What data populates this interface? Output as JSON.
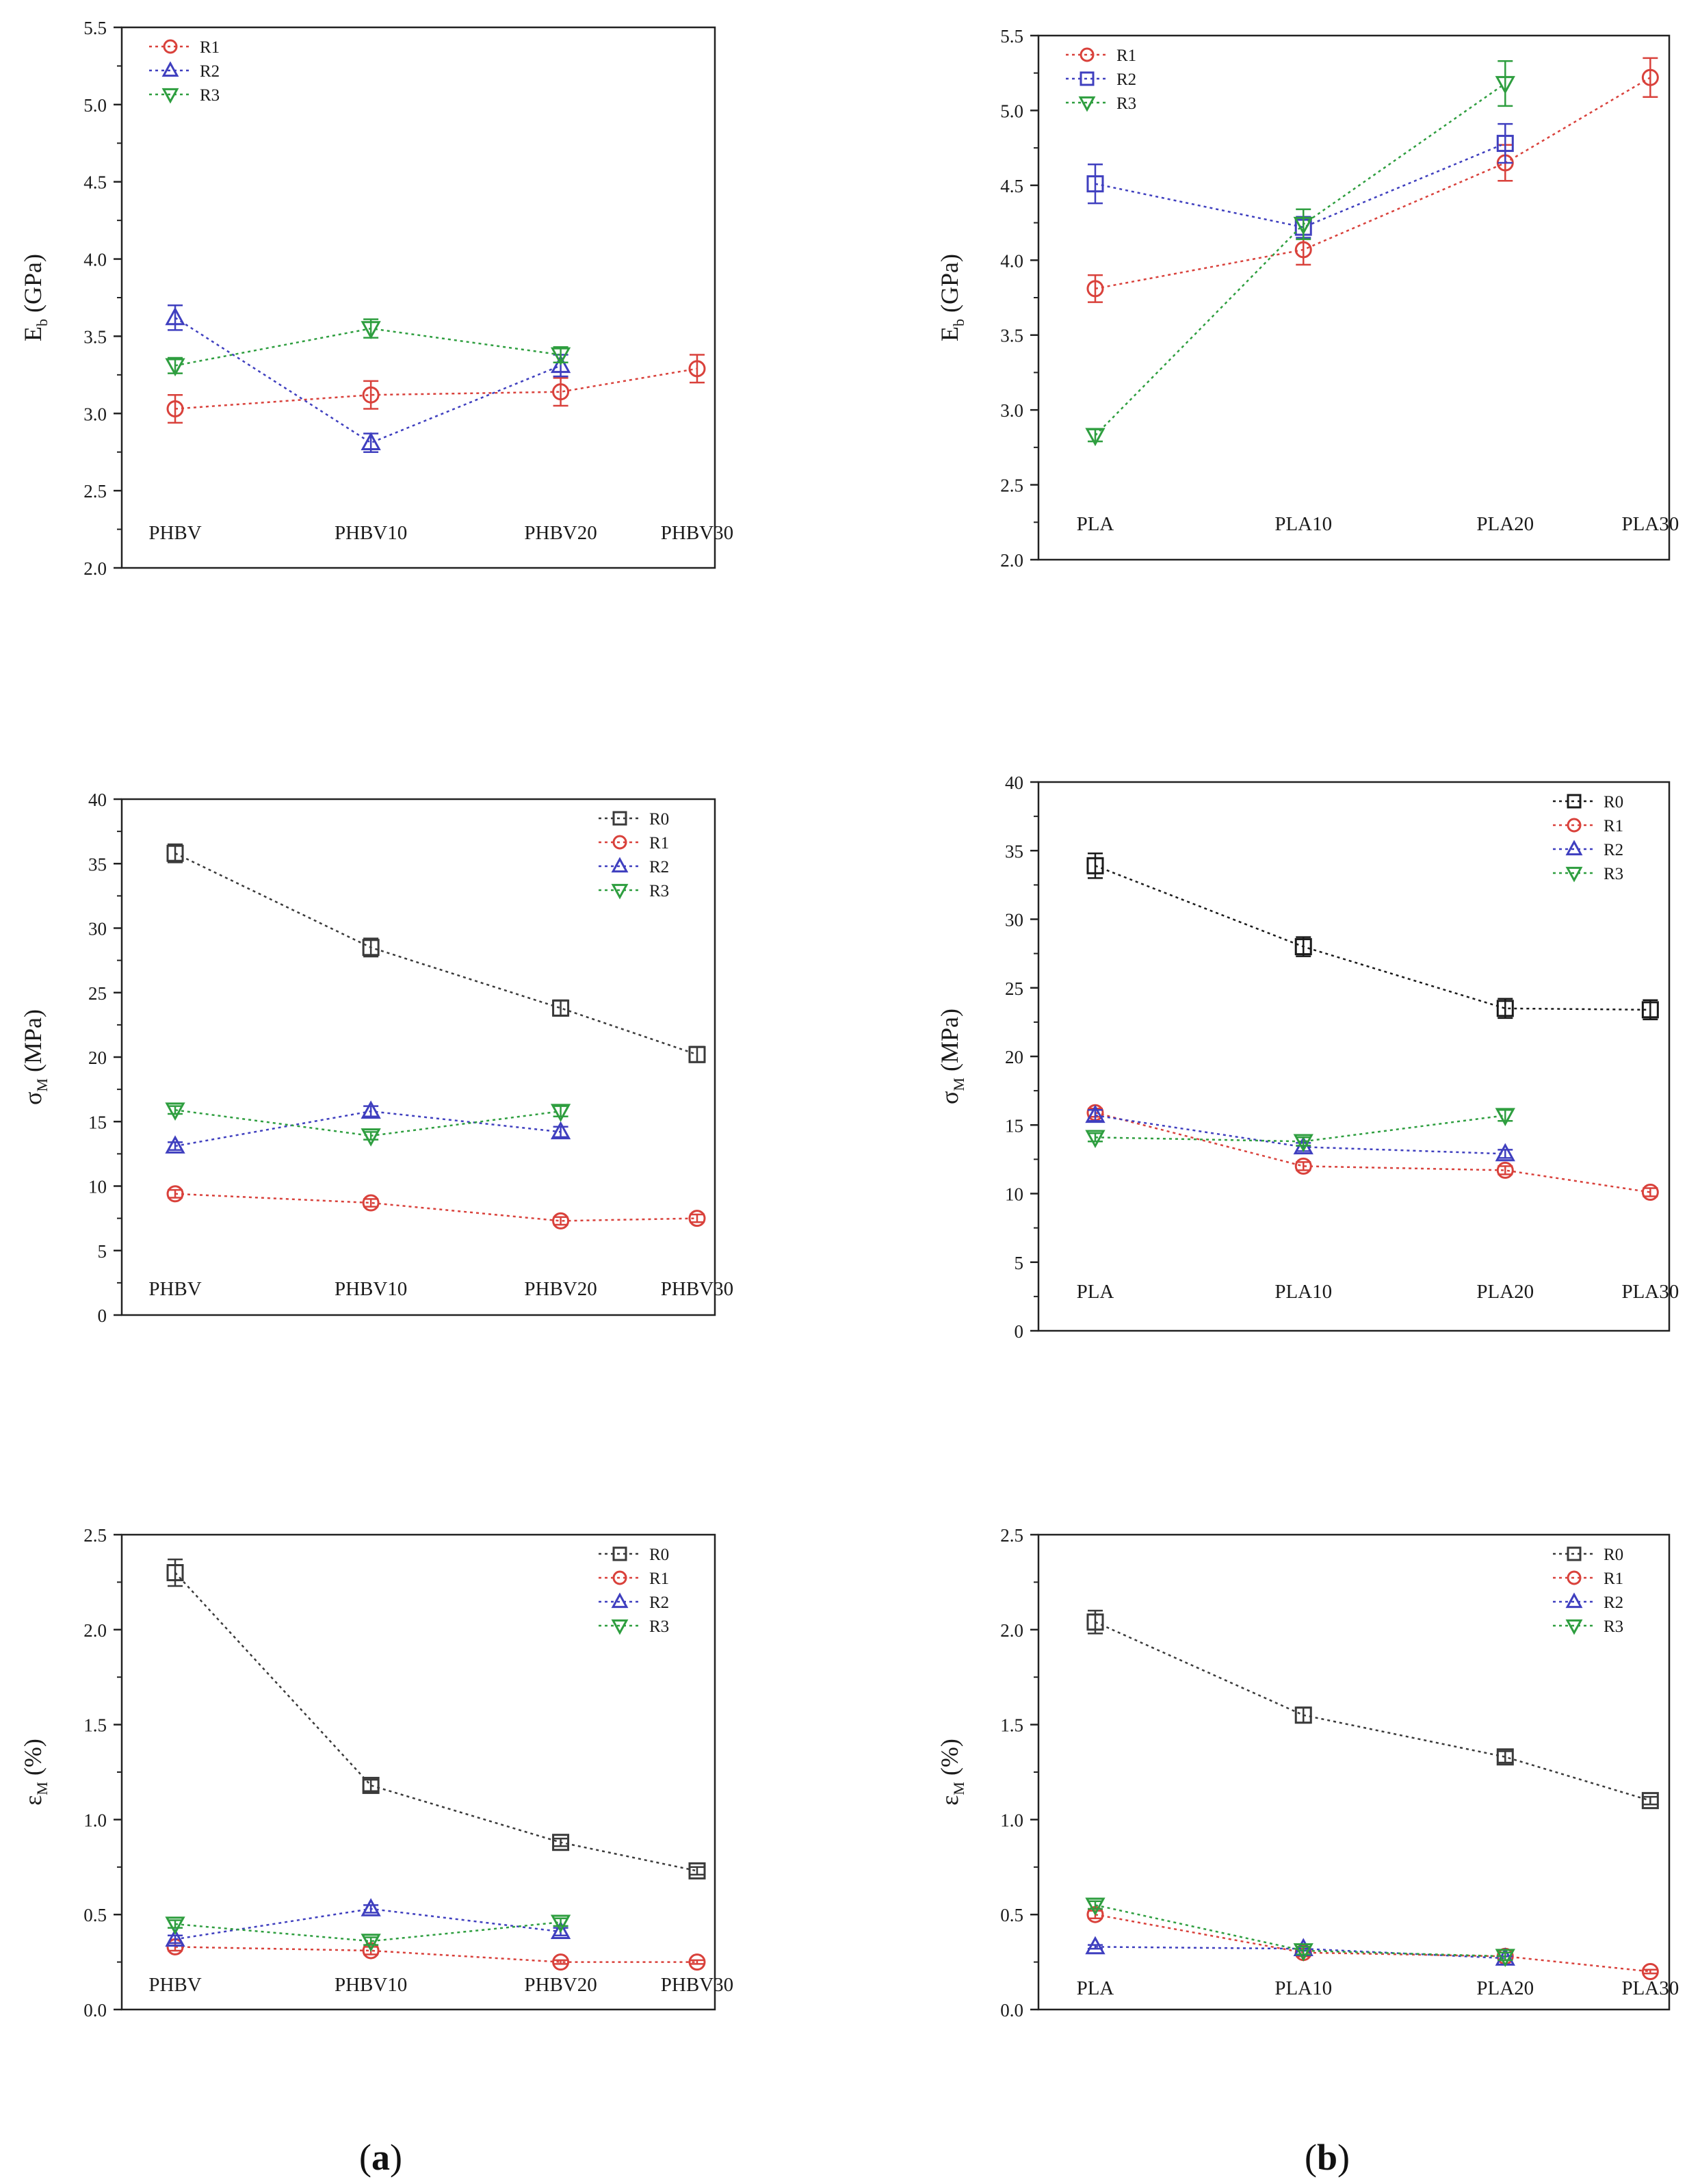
{
  "figure": {
    "caption_a": "a",
    "caption_b": "b"
  },
  "chart_data": [
    {
      "id": "a1",
      "type": "line",
      "ylabel_main": "E",
      "ylabel_sub": "b",
      "ylabel_tail": " (GPa)",
      "ylim": [
        2.0,
        5.5
      ],
      "yticks": [
        "2.0",
        "2.5",
        "3.0",
        "3.5",
        "4.0",
        "4.5",
        "5.0",
        "5.5"
      ],
      "categories": [
        "PHBV",
        "PHBV10",
        "PHBV20",
        "PHBV30"
      ],
      "legend_pos": "top-left",
      "series": [
        {
          "name": "R1",
          "marker": "circle",
          "color": "#d9413b",
          "values": [
            3.03,
            3.12,
            3.14,
            3.29
          ],
          "errors": [
            0.09,
            0.09,
            0.09,
            0.09
          ]
        },
        {
          "name": "R2",
          "marker": "triangle-up",
          "color": "#3f3fbf",
          "values": [
            3.62,
            2.81,
            3.31,
            null
          ],
          "errors": [
            0.08,
            0.06,
            0.07,
            null
          ]
        },
        {
          "name": "R3",
          "marker": "triangle-down",
          "color": "#2e9e3f",
          "values": [
            3.31,
            3.55,
            3.38,
            null
          ],
          "errors": [
            0.05,
            0.06,
            0.05,
            null
          ]
        }
      ]
    },
    {
      "id": "b1",
      "type": "line",
      "ylabel_main": "E",
      "ylabel_sub": "b",
      "ylabel_tail": " (GPa)",
      "ylim": [
        2.0,
        5.5
      ],
      "yticks": [
        "2.0",
        "2.5",
        "3.0",
        "3.5",
        "4.0",
        "4.5",
        "5.0",
        "5.5"
      ],
      "categories": [
        "PLA",
        "PLA10",
        "PLA20",
        "PLA30"
      ],
      "legend_pos": "top-left",
      "series": [
        {
          "name": "R1",
          "marker": "circle",
          "color": "#d9413b",
          "values": [
            3.81,
            4.07,
            4.65,
            5.22
          ],
          "errors": [
            0.09,
            0.1,
            0.12,
            0.13
          ]
        },
        {
          "name": "R2",
          "marker": "square",
          "color": "#3f3fbf",
          "values": [
            4.51,
            4.22,
            4.78,
            null
          ],
          "errors": [
            0.13,
            0.07,
            0.13,
            null
          ]
        },
        {
          "name": "R3",
          "marker": "triangle-down",
          "color": "#2e9e3f",
          "values": [
            2.83,
            4.24,
            5.18,
            null
          ],
          "errors": [
            0.04,
            0.1,
            0.15,
            null
          ]
        }
      ]
    },
    {
      "id": "a2",
      "type": "line",
      "ylabel_main": "σ",
      "ylabel_sub": "M",
      "ylabel_tail": " (MPa)",
      "ylim": [
        0,
        40
      ],
      "yticks": [
        "0",
        "5",
        "10",
        "15",
        "20",
        "25",
        "30",
        "35",
        "40"
      ],
      "categories": [
        "PHBV",
        "PHBV10",
        "PHBV20",
        "PHBV30"
      ],
      "legend_pos": "top-right",
      "series": [
        {
          "name": "R0",
          "marker": "square",
          "color": "#3a3a3a",
          "values": [
            35.8,
            28.5,
            23.8,
            20.2
          ],
          "errors": [
            0.7,
            0.7,
            0.6,
            0.6
          ]
        },
        {
          "name": "R1",
          "marker": "circle",
          "color": "#d9413b",
          "values": [
            9.4,
            8.7,
            7.3,
            7.5
          ],
          "errors": [
            0.3,
            0.3,
            0.3,
            0.3
          ]
        },
        {
          "name": "R2",
          "marker": "triangle-up",
          "color": "#3f3fbf",
          "values": [
            13.1,
            15.8,
            14.2,
            null
          ],
          "errors": [
            0.3,
            0.4,
            0.4,
            null
          ]
        },
        {
          "name": "R3",
          "marker": "triangle-down",
          "color": "#2e9e3f",
          "values": [
            15.9,
            13.9,
            15.8,
            null
          ],
          "errors": [
            0.3,
            0.3,
            0.4,
            null
          ]
        }
      ]
    },
    {
      "id": "b2",
      "type": "line",
      "ylabel_main": "σ",
      "ylabel_sub": "M",
      "ylabel_tail": " (MPa)",
      "ylim": [
        0,
        40
      ],
      "yticks": [
        "0",
        "5",
        "10",
        "15",
        "20",
        "25",
        "30",
        "35",
        "40"
      ],
      "categories": [
        "PLA",
        "PLA10",
        "PLA20",
        "PLA30"
      ],
      "legend_pos": "top-right",
      "series": [
        {
          "name": "R0",
          "marker": "square",
          "color": "#1a1a1a",
          "values": [
            33.9,
            28.0,
            23.5,
            23.4
          ],
          "errors": [
            0.9,
            0.7,
            0.7,
            0.7
          ]
        },
        {
          "name": "R1",
          "marker": "circle",
          "color": "#d9413b",
          "values": [
            15.9,
            12.0,
            11.7,
            10.1
          ],
          "errors": [
            0.3,
            0.3,
            0.3,
            0.3
          ]
        },
        {
          "name": "R2",
          "marker": "triangle-up",
          "color": "#3f3fbf",
          "values": [
            15.7,
            13.4,
            12.9,
            null
          ],
          "errors": [
            0.4,
            0.3,
            0.3,
            null
          ]
        },
        {
          "name": "R3",
          "marker": "triangle-down",
          "color": "#2e9e3f",
          "values": [
            14.1,
            13.8,
            15.7,
            null
          ],
          "errors": [
            0.3,
            0.3,
            0.4,
            null
          ]
        }
      ]
    },
    {
      "id": "a3",
      "type": "line",
      "ylabel_main": "ε",
      "ylabel_sub": "M",
      "ylabel_tail": " (%)",
      "ylim": [
        0.0,
        2.5
      ],
      "yticks": [
        "0.0",
        "0.5",
        "1.0",
        "1.5",
        "2.0",
        "2.5"
      ],
      "categories": [
        "PHBV",
        "PHBV10",
        "PHBV20",
        "PHBV30"
      ],
      "legend_pos": "top-right",
      "series": [
        {
          "name": "R0",
          "marker": "square",
          "color": "#3a3a3a",
          "values": [
            2.3,
            1.18,
            0.88,
            0.73
          ],
          "errors": [
            0.07,
            0.03,
            0.02,
            0.02
          ]
        },
        {
          "name": "R1",
          "marker": "circle",
          "color": "#d9413b",
          "values": [
            0.33,
            0.31,
            0.25,
            0.25
          ],
          "errors": [
            0.02,
            0.02,
            0.01,
            0.01
          ]
        },
        {
          "name": "R2",
          "marker": "triangle-up",
          "color": "#3f3fbf",
          "values": [
            0.37,
            0.53,
            0.41,
            null
          ],
          "errors": [
            0.02,
            0.02,
            0.02,
            null
          ]
        },
        {
          "name": "R3",
          "marker": "triangle-down",
          "color": "#2e9e3f",
          "values": [
            0.45,
            0.36,
            0.46,
            null
          ],
          "errors": [
            0.02,
            0.02,
            0.02,
            null
          ]
        }
      ]
    },
    {
      "id": "b3",
      "type": "line",
      "ylabel_main": "ε",
      "ylabel_sub": "M",
      "ylabel_tail": " (%)",
      "ylim": [
        0.0,
        2.5
      ],
      "yticks": [
        "0.0",
        "0.5",
        "1.0",
        "1.5",
        "2.0",
        "2.5"
      ],
      "categories": [
        "PLA",
        "PLA10",
        "PLA20",
        "PLA30"
      ],
      "legend_pos": "top-right",
      "series": [
        {
          "name": "R0",
          "marker": "square",
          "color": "#3a3a3a",
          "values": [
            2.04,
            1.55,
            1.33,
            1.1
          ],
          "errors": [
            0.06,
            0.04,
            0.03,
            0.02
          ]
        },
        {
          "name": "R1",
          "marker": "circle",
          "color": "#d9413b",
          "values": [
            0.5,
            0.3,
            0.28,
            0.2
          ],
          "errors": [
            0.02,
            0.02,
            0.02,
            0.01
          ]
        },
        {
          "name": "R2",
          "marker": "triangle-up",
          "color": "#3f3fbf",
          "values": [
            0.33,
            0.32,
            0.27,
            null
          ],
          "errors": [
            0.01,
            0.01,
            0.01,
            null
          ]
        },
        {
          "name": "R3",
          "marker": "triangle-down",
          "color": "#2e9e3f",
          "values": [
            0.55,
            0.31,
            0.28,
            null
          ],
          "errors": [
            0.02,
            0.02,
            0.02,
            null
          ]
        }
      ]
    }
  ]
}
